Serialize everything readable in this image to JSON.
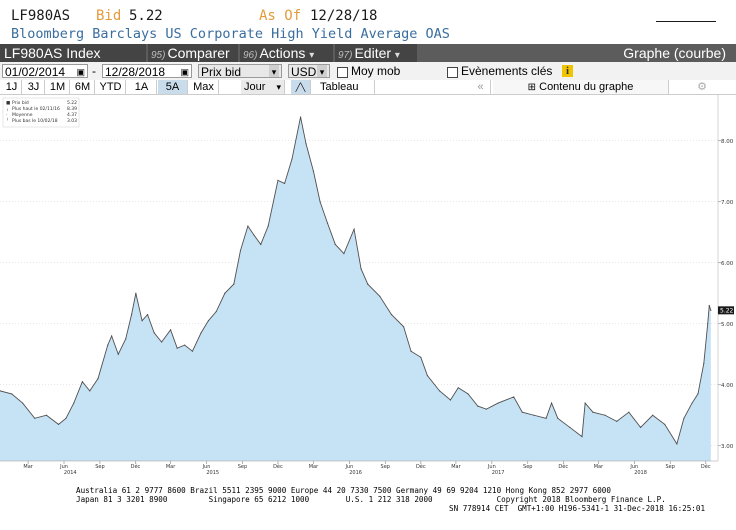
{
  "header": {
    "ticker": "LF980AS",
    "bid_label": "Bid",
    "bid_value": "5.22",
    "asof_label": "As Of",
    "asof_date": "12/28/18",
    "index_name": "Bloomberg Barclays US Corporate High Yield Average OAS"
  },
  "toolbar": {
    "index_label": "LF980AS Index",
    "compare": {
      "num": "95)",
      "label": "Comparer"
    },
    "actions": {
      "num": "96)",
      "label": "Actions",
      "arrow": "▾"
    },
    "edit": {
      "num": "97)",
      "label": "Editer",
      "arrow": "▾"
    },
    "view_title": "Graphe (courbe)"
  },
  "controls": {
    "start_date": "01/02/2014",
    "dash": "-",
    "end_date": "12/28/2018",
    "field": "Prix bid",
    "currency": "USD",
    "moving_avg_label": "Moy mob",
    "events_label": "Evènements clés",
    "info_icon": "info-icon"
  },
  "ranges": {
    "buttons": [
      "1J",
      "3J",
      "1M",
      "6M",
      "YTD",
      "1A",
      "5A",
      "Max"
    ],
    "selected": "5A",
    "period": "Jour",
    "table_label": "Tableau",
    "content_label": "Contenu du graphe",
    "colors": {
      "selected_bg": "#c9dcec",
      "period_bg": "#c9dcec"
    }
  },
  "legend": {
    "rows": [
      {
        "label": "Prix bid",
        "value": "5.22"
      },
      {
        "label": "Plus haut le 02/11/16",
        "value": "8.39"
      },
      {
        "label": "Moyenne",
        "value": "4.37"
      },
      {
        "label": "Plus bas le 10/02/18",
        "value": "3.03"
      }
    ]
  },
  "chart_data": {
    "type": "area",
    "series": [
      {
        "name": "Prix bid",
        "x": [
          "2014-01-02",
          "2014-02-01",
          "2014-03-01",
          "2014-04-01",
          "2014-05-01",
          "2014-06-01",
          "2014-06-20",
          "2014-07-10",
          "2014-08-01",
          "2014-08-20",
          "2014-09-10",
          "2014-10-05",
          "2014-10-15",
          "2014-11-01",
          "2014-11-20",
          "2014-12-05",
          "2014-12-16",
          "2015-01-01",
          "2015-01-15",
          "2015-02-01",
          "2015-02-20",
          "2015-03-15",
          "2015-04-01",
          "2015-04-20",
          "2015-05-10",
          "2015-06-01",
          "2015-06-20",
          "2015-07-10",
          "2015-08-01",
          "2015-08-24",
          "2015-09-10",
          "2015-09-29",
          "2015-10-15",
          "2015-11-01",
          "2015-11-20",
          "2015-12-15",
          "2016-01-01",
          "2016-01-20",
          "2016-02-11",
          "2016-02-25",
          "2016-03-15",
          "2016-04-01",
          "2016-04-20",
          "2016-05-10",
          "2016-06-01",
          "2016-06-27",
          "2016-07-15",
          "2016-08-01",
          "2016-09-01",
          "2016-10-01",
          "2016-11-01",
          "2016-11-20",
          "2016-12-15",
          "2017-01-01",
          "2017-02-01",
          "2017-03-01",
          "2017-03-21",
          "2017-04-15",
          "2017-05-10",
          "2017-06-01",
          "2017-07-01",
          "2017-08-10",
          "2017-09-01",
          "2017-10-01",
          "2017-11-01",
          "2017-11-15",
          "2017-12-01",
          "2018-01-01",
          "2018-02-01",
          "2018-02-09",
          "2018-03-01",
          "2018-04-01",
          "2018-05-01",
          "2018-06-01",
          "2018-07-01",
          "2018-08-01",
          "2018-09-01",
          "2018-10-02",
          "2018-10-20",
          "2018-11-10",
          "2018-11-25",
          "2018-12-10",
          "2018-12-20",
          "2018-12-24",
          "2018-12-28"
        ],
        "values": [
          3.9,
          3.85,
          3.7,
          3.45,
          3.5,
          3.35,
          3.45,
          3.7,
          4.05,
          3.9,
          4.1,
          4.65,
          4.8,
          4.5,
          4.75,
          5.15,
          5.5,
          5.05,
          5.15,
          4.85,
          4.7,
          4.9,
          4.6,
          4.65,
          4.55,
          4.85,
          5.05,
          5.2,
          5.5,
          5.65,
          6.2,
          6.6,
          6.45,
          6.3,
          6.6,
          7.35,
          7.3,
          7.7,
          8.39,
          7.95,
          7.5,
          7.0,
          6.65,
          6.3,
          6.15,
          6.55,
          5.9,
          5.65,
          5.45,
          5.15,
          4.95,
          4.55,
          4.45,
          4.15,
          3.9,
          3.75,
          3.95,
          3.85,
          3.65,
          3.6,
          3.7,
          3.8,
          3.55,
          3.5,
          3.45,
          3.7,
          3.45,
          3.3,
          3.15,
          3.7,
          3.55,
          3.5,
          3.4,
          3.55,
          3.3,
          3.5,
          3.35,
          3.03,
          3.45,
          3.7,
          3.85,
          4.35,
          5.0,
          5.3,
          5.22
        ]
      }
    ],
    "x_range": [
      "2014-01-02",
      "2018-12-31"
    ],
    "ylim": [
      2.75,
      8.75
    ],
    "yticks": [
      "3.00",
      "4.00",
      "5.00",
      "6.00",
      "7.00",
      "8.00"
    ],
    "last_value_label": "5.22",
    "x_month_ticks": [
      {
        "label": "Mar",
        "date": "2014-03-15"
      },
      {
        "label": "Jun",
        "date": "2014-06-15"
      },
      {
        "label": "Sep",
        "date": "2014-09-15"
      },
      {
        "label": "Déc",
        "date": "2014-12-15"
      },
      {
        "label": "Mar",
        "date": "2015-03-15"
      },
      {
        "label": "Jun",
        "date": "2015-06-15"
      },
      {
        "label": "Sep",
        "date": "2015-09-15"
      },
      {
        "label": "Déc",
        "date": "2015-12-15"
      },
      {
        "label": "Mar",
        "date": "2016-03-15"
      },
      {
        "label": "Jun",
        "date": "2016-06-15"
      },
      {
        "label": "Sep",
        "date": "2016-09-15"
      },
      {
        "label": "Déc",
        "date": "2016-12-15"
      },
      {
        "label": "Mar",
        "date": "2017-03-15"
      },
      {
        "label": "Jun",
        "date": "2017-06-15"
      },
      {
        "label": "Sep",
        "date": "2017-09-15"
      },
      {
        "label": "Déc",
        "date": "2017-12-15"
      },
      {
        "label": "Mar",
        "date": "2018-03-15"
      },
      {
        "label": "Jun",
        "date": "2018-06-15"
      },
      {
        "label": "Sep",
        "date": "2018-09-15"
      },
      {
        "label": "Déc",
        "date": "2018-12-15"
      }
    ],
    "x_year_ticks": [
      {
        "label": "2014",
        "date": "2014-07-01"
      },
      {
        "label": "2015",
        "date": "2015-07-01"
      },
      {
        "label": "2016",
        "date": "2016-07-01"
      },
      {
        "label": "2017",
        "date": "2017-07-01"
      },
      {
        "label": "2018",
        "date": "2018-07-01"
      }
    ],
    "grid": "horizontal dotted",
    "legend_position": "top-left",
    "colors": {
      "fill": "#c6e2f5",
      "line": "#505050",
      "last_label_bg": "#1a1a1a",
      "last_label_fg": "#ffffff"
    }
  },
  "footer": {
    "line1": "Australia 61 2 9777 8600 Brazil 5511 2395 9000 Europe 44 20 7330 7500 Germany 49 69 9204 1210 Hong Kong 852 2977 6000",
    "line2": "Japan 81 3 3201 8900         Singapore 65 6212 1000        U.S. 1 212 318 2000              Copyright 2018 Bloomberg Finance L.P.",
    "line3": "SN 778914 CET  GMT+1:00 H196-5341-1 31-Dec-2018 16:25:01"
  },
  "colors": {
    "ticker": "#1a1a1a",
    "bid": "#e39b3b",
    "asof": "#e39b3b",
    "index_name": "#3a6e9e",
    "dark_bar": "#5c5c5c",
    "cell": "#444444",
    "info_icon_bg": "#f0c400"
  }
}
